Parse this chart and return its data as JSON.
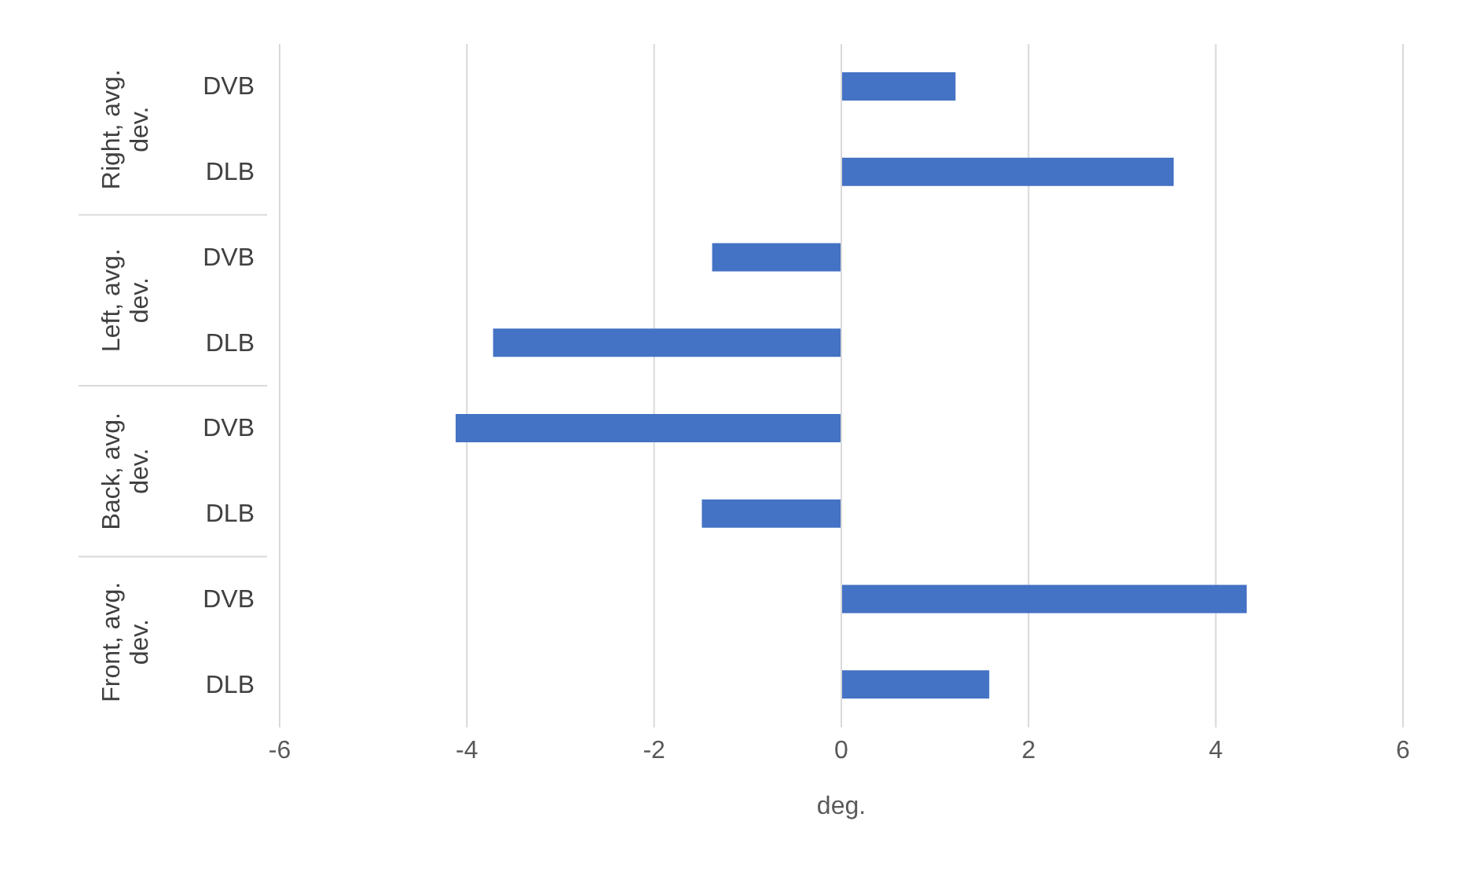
{
  "chart_data": {
    "type": "bar",
    "orientation": "horizontal",
    "xlabel": "deg.",
    "categories": [
      "DVB",
      "DLB",
      "DVB",
      "DLB",
      "DVB",
      "DLB",
      "DVB",
      "DLB"
    ],
    "annotations": [
      "Right, avg. dev.",
      "Left, avg. dev.",
      "Back, avg. dev.",
      "Front, avg. dev."
    ],
    "values": [
      1.22,
      3.55,
      -1.38,
      -3.72,
      -4.12,
      -1.49,
      4.33,
      1.58
    ],
    "color": "#4472c4",
    "xlim": [
      -6,
      6
    ],
    "xticks": [
      -6,
      -4,
      -2,
      0,
      2,
      4,
      6
    ],
    "grid": "x"
  }
}
